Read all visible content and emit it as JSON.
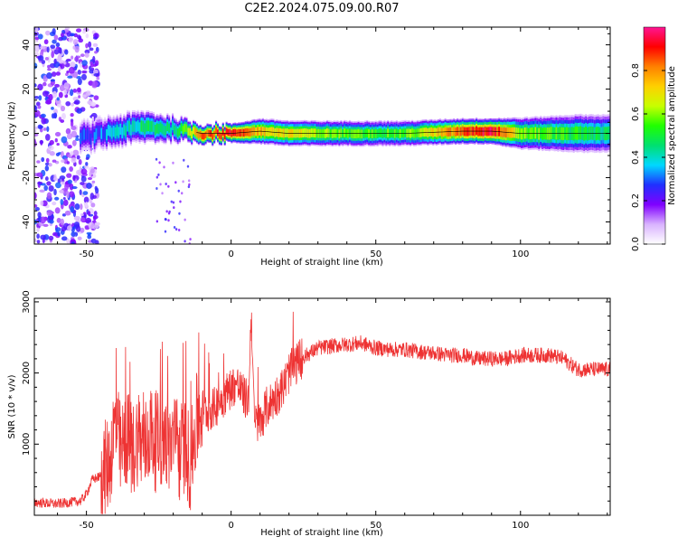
{
  "title": "C2E2.2024.075.09.00.R07",
  "chart_data": [
    {
      "type": "heatmap",
      "xlabel": "Height of straight line (km)",
      "ylabel": "Frequency (Hz)",
      "xlim": [
        -68,
        131
      ],
      "ylim": [
        -50,
        48
      ],
      "xticks": [
        -50,
        0,
        50,
        100
      ],
      "yticks": [
        -40,
        -20,
        0,
        20,
        40
      ],
      "colorbar": {
        "label": "Normalized spectral amplitude",
        "range": [
          0.0,
          1.0
        ],
        "ticks": [
          0.0,
          0.2,
          0.4,
          0.6,
          0.8
        ],
        "tick_labels": [
          "0.0",
          "0.2",
          "0.4",
          "0.6",
          "0.8"
        ],
        "colors": [
          "#ffffff",
          "#d9b3ff",
          "#8000ff",
          "#2030ff",
          "#00d8ff",
          "#00e070",
          "#20ff00",
          "#c8ff00",
          "#ffd000",
          "#ff8000",
          "#ff0000",
          "#ff1493"
        ]
      },
      "ridge_profile": [
        {
          "height": -52,
          "peak_frequency": -2,
          "amplitude": 0.25,
          "bandwidth": 5
        },
        {
          "height": -40,
          "peak_frequency": 1,
          "amplitude": 0.35,
          "bandwidth": 5
        },
        {
          "height": -30,
          "peak_frequency": 3,
          "amplitude": 0.45,
          "bandwidth": 5
        },
        {
          "height": -20,
          "peak_frequency": 2,
          "amplitude": 0.45,
          "bandwidth": 4
        },
        {
          "height": -10,
          "peak_frequency": 0,
          "amplitude": 0.85,
          "bandwidth": 3
        },
        {
          "height": 0,
          "peak_frequency": 0,
          "amplitude": 0.9,
          "bandwidth": 3
        },
        {
          "height": 10,
          "peak_frequency": 1,
          "amplitude": 0.75,
          "bandwidth": 4
        },
        {
          "height": 20,
          "peak_frequency": 0,
          "amplitude": 0.7,
          "bandwidth": 4
        },
        {
          "height": 40,
          "peak_frequency": 0,
          "amplitude": 0.55,
          "bandwidth": 4
        },
        {
          "height": 60,
          "peak_frequency": 0,
          "amplitude": 0.55,
          "bandwidth": 4
        },
        {
          "height": 80,
          "peak_frequency": 1,
          "amplitude": 0.85,
          "bandwidth": 4
        },
        {
          "height": 90,
          "peak_frequency": 1,
          "amplitude": 0.95,
          "bandwidth": 4
        },
        {
          "height": 100,
          "peak_frequency": 0,
          "amplitude": 0.6,
          "bandwidth": 5
        },
        {
          "height": 120,
          "peak_frequency": 0,
          "amplitude": 0.5,
          "bandwidth": 6
        },
        {
          "height": 131,
          "peak_frequency": 0,
          "amplitude": 0.45,
          "bandwidth": 6
        }
      ],
      "noise_region": {
        "height_range": [
          -68,
          -46
        ],
        "frequency_range": [
          -50,
          48
        ],
        "amplitude": 0.25
      }
    },
    {
      "type": "line",
      "xlabel": "Height of straight line (km)",
      "ylabel": "SNR (10 * v/v)",
      "xlim": [
        -68,
        131
      ],
      "ylim": [
        0,
        3050
      ],
      "xticks": [
        -50,
        0,
        50,
        100
      ],
      "yticks": [
        1000,
        2000,
        3000
      ],
      "color": "#ee3333",
      "series": [
        {
          "x": [
            -68,
            -60,
            -52,
            -50,
            -48,
            -45,
            -42,
            -40,
            -38,
            -36,
            -34,
            -32,
            -30,
            -28,
            -26,
            -24,
            -22,
            -20,
            -18,
            -16,
            -14,
            -12,
            -10,
            -8,
            -6,
            -4,
            -2,
            0,
            2,
            4,
            6,
            7,
            8,
            10,
            12,
            14,
            16,
            18,
            20,
            22,
            24,
            26,
            28,
            30,
            35,
            40,
            45,
            50,
            55,
            60,
            65,
            70,
            75,
            80,
            85,
            90,
            95,
            100,
            105,
            110,
            115,
            118,
            120,
            125,
            131
          ],
          "y": [
            180,
            160,
            200,
            300,
            500,
            550,
            750,
            1300,
            850,
            1100,
            900,
            1150,
            900,
            1200,
            1000,
            1100,
            950,
            1050,
            850,
            1000,
            700,
            1300,
            1500,
            1450,
            1500,
            1600,
            1700,
            1800,
            1850,
            1700,
            1600,
            2900,
            1300,
            1300,
            1500,
            1600,
            1700,
            1800,
            2000,
            2100,
            2200,
            2250,
            2300,
            2350,
            2380,
            2400,
            2420,
            2350,
            2330,
            2330,
            2300,
            2280,
            2250,
            2250,
            2200,
            2200,
            2200,
            2250,
            2250,
            2250,
            2200,
            2100,
            2050,
            2050,
            2050
          ]
        }
      ]
    }
  ]
}
